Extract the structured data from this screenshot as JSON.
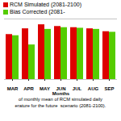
{
  "chart_data": {
    "type": "bar",
    "categories": [
      "MAR",
      "APR",
      "MAY",
      "JUN",
      "JUL",
      "AUG",
      "SEP"
    ],
    "series": [
      {
        "name": "RCM Simulated (2081-2100)",
        "color": "#dd0000",
        "values": [
          0.78,
          0.88,
          0.95,
          0.92,
          0.9,
          0.88,
          0.83
        ]
      },
      {
        "name": "Bias Corrected (2081-",
        "color": "#55cc00",
        "values": [
          0.76,
          0.6,
          0.87,
          0.9,
          0.89,
          0.87,
          0.82
        ]
      }
    ],
    "xlabel": "Months",
    "ylim": [
      0,
      1.05
    ],
    "tick_labels": "x",
    "legend": "upper left",
    "annotations": [
      "of monthly mean of RCM simulated daily",
      "erature for the future  scenario (2081-2100)."
    ]
  }
}
